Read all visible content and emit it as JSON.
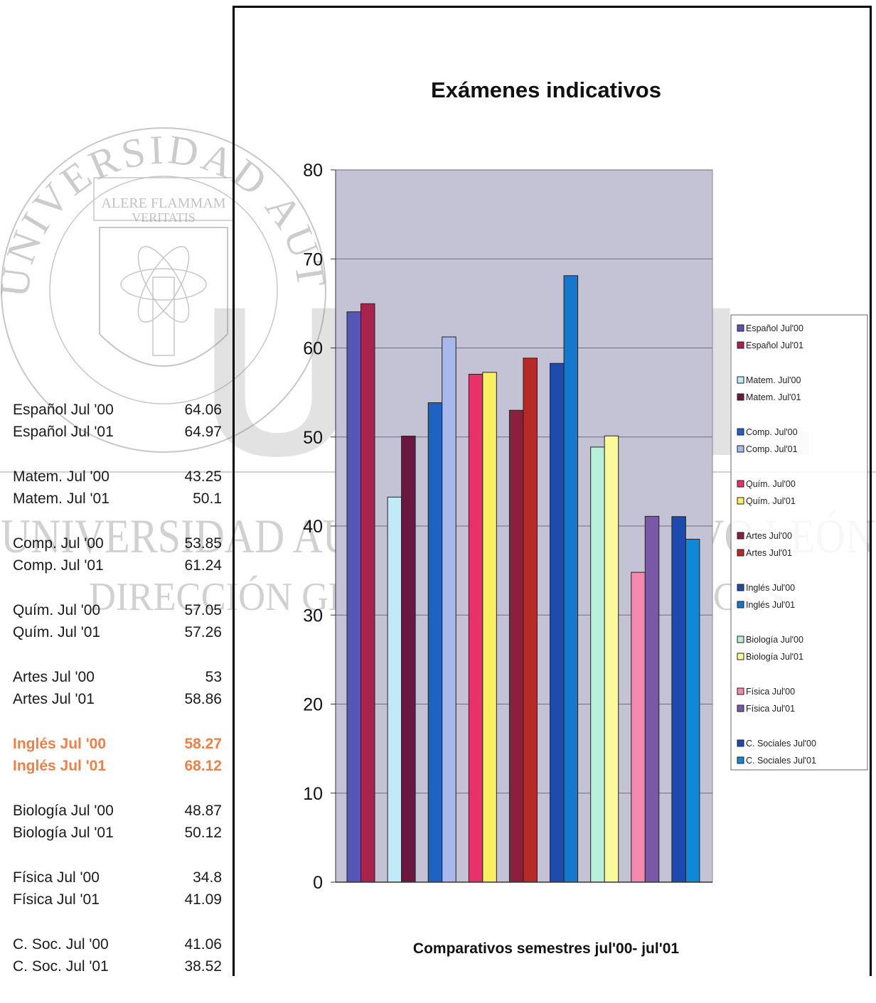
{
  "side_table": [
    {
      "rows": [
        {
          "label": "Español Jul '00",
          "value": "64.06"
        },
        {
          "label": "Español Jul '01",
          "value": "64.97"
        }
      ]
    },
    {
      "rows": [
        {
          "label": "Matem. Jul '00",
          "value": "43.25"
        },
        {
          "label": "Matem. Jul '01",
          "value": "50.1"
        }
      ]
    },
    {
      "rows": [
        {
          "label": "Comp. Jul '00",
          "value": "53.85"
        },
        {
          "label": "Comp. Jul '01",
          "value": "61.24"
        }
      ]
    },
    {
      "rows": [
        {
          "label": "Quím. Jul '00",
          "value": "57.05"
        },
        {
          "label": "Quím. Jul '01",
          "value": "57.26"
        }
      ]
    },
    {
      "rows": [
        {
          "label": "Artes Jul '00",
          "value": "53"
        },
        {
          "label": "Artes Jul '01",
          "value": "58.86"
        }
      ]
    },
    {
      "highlight": true,
      "rows": [
        {
          "label": "Inglés Jul '00",
          "value": "58.27"
        },
        {
          "label": "Inglés Jul '01",
          "value": "68.12"
        }
      ]
    },
    {
      "rows": [
        {
          "label": "Biología Jul '00",
          "value": "48.87"
        },
        {
          "label": "Biología Jul '01",
          "value": "50.12"
        }
      ]
    },
    {
      "rows": [
        {
          "label": "Física Jul '00",
          "value": "34.8"
        },
        {
          "label": "Física Jul '01",
          "value": "41.09"
        }
      ]
    },
    {
      "rows": [
        {
          "label": "C. Soc. Jul '00",
          "value": "41.06"
        },
        {
          "label": "C. Soc. Jul '01",
          "value": "38.52"
        }
      ]
    }
  ],
  "watermark": {
    "seal_top_text": "UNIVERSIDAD AUTÓNOMA DE NUEVO LEÓN",
    "motto_line1": "ALERE FLAMMAM",
    "motto_line2": "VERITATIS",
    "big_text": "UANL",
    "line1": "UNIVERSIDAD AUTÓNOMA DE NUEVO LEÓN",
    "line2": "DIRECCIÓN GENERAL DE BIBLIOTECAS"
  },
  "chart_data": {
    "type": "bar",
    "title": "Exámenes indicativos",
    "xlabel": "Comparativos semestres jul'00- jul'01",
    "ylim": [
      0,
      80
    ],
    "yticks": [
      0,
      10,
      20,
      30,
      40,
      50,
      60,
      70,
      80
    ],
    "grid": true,
    "legend_position": "right",
    "plot_background": "#c4c3d5",
    "series": [
      {
        "name": "Español Jul'00",
        "value": 64.06,
        "color": "#5656b4",
        "group": 0
      },
      {
        "name": "Español Jul'01",
        "value": 64.97,
        "color": "#a8244c",
        "group": 0
      },
      {
        "name": "Matem. Jul'00",
        "value": 43.25,
        "color": "#bfeaf6",
        "group": 1
      },
      {
        "name": "Matem. Jul'01",
        "value": 50.1,
        "color": "#6a1840",
        "group": 1
      },
      {
        "name": "Comp. Jul'00",
        "value": 53.85,
        "color": "#1e62c4",
        "group": 2
      },
      {
        "name": "Comp. Jul'01",
        "value": 61.24,
        "color": "#a8b8ec",
        "group": 2
      },
      {
        "name": "Quím. Jul'00",
        "value": 57.05,
        "color": "#e8306a",
        "group": 3
      },
      {
        "name": "Quím. Jul'01",
        "value": 57.26,
        "color": "#f8f060",
        "group": 3
      },
      {
        "name": "Artes Jul'00",
        "value": 53,
        "color": "#8c1e3e",
        "group": 4
      },
      {
        "name": "Artes Jul'01",
        "value": 58.86,
        "color": "#b82a26",
        "group": 4
      },
      {
        "name": "Inglés Jul'00",
        "value": 58.27,
        "color": "#1d4caa",
        "group": 5
      },
      {
        "name": "Inglés Jul'01",
        "value": 68.12,
        "color": "#1478cc",
        "group": 5
      },
      {
        "name": "Biología Jul'00",
        "value": 48.87,
        "color": "#b8f0dc",
        "group": 6
      },
      {
        "name": "Biología Jul'01",
        "value": 50.12,
        "color": "#fafa9c",
        "group": 6
      },
      {
        "name": "Física Jul'00",
        "value": 34.8,
        "color": "#f48ab0",
        "group": 7
      },
      {
        "name": "Física Jul'01",
        "value": 41.09,
        "color": "#7a58a8",
        "group": 7
      },
      {
        "name": "C. Sociales Jul'00",
        "value": 41.06,
        "color": "#1c4ab0",
        "group": 8
      },
      {
        "name": "C. Sociales Jul'01",
        "value": 38.52,
        "color": "#1088d8",
        "group": 8
      }
    ]
  }
}
